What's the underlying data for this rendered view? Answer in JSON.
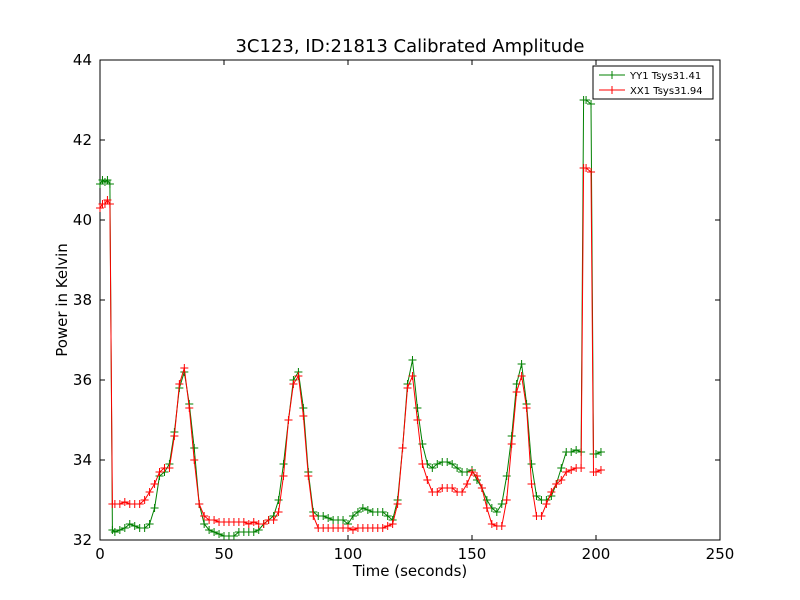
{
  "chart_data": {
    "type": "line",
    "title": "3C123, ID:21813 Calibrated Amplitude",
    "xlabel": "Time (seconds)",
    "ylabel": "Power in Kelvin",
    "xlim": [
      0,
      250
    ],
    "ylim": [
      32,
      44
    ],
    "xticks": [
      "0",
      "50",
      "100",
      "150",
      "200",
      "250"
    ],
    "yticks": [
      "32",
      "34",
      "36",
      "38",
      "40",
      "42",
      "44"
    ],
    "grid": false,
    "legend_position": "top-right",
    "series": [
      {
        "name": "YY1 Tsys31.41",
        "color": "#008000",
        "marker": "+",
        "x": [
          0,
          1,
          2,
          3,
          4,
          5,
          6,
          8,
          10,
          12,
          14,
          16,
          18,
          20,
          22,
          24,
          26,
          28,
          30,
          32,
          34,
          36,
          38,
          40,
          42,
          44,
          46,
          48,
          50,
          52,
          54,
          56,
          58,
          60,
          62,
          64,
          66,
          68,
          70,
          72,
          74,
          76,
          78,
          80,
          82,
          84,
          86,
          88,
          90,
          92,
          94,
          96,
          98,
          100,
          102,
          104,
          106,
          108,
          110,
          112,
          114,
          116,
          118,
          120,
          122,
          124,
          126,
          128,
          130,
          132,
          134,
          136,
          138,
          140,
          142,
          144,
          146,
          148,
          150,
          152,
          154,
          156,
          158,
          160,
          162,
          164,
          166,
          168,
          170,
          172,
          174,
          176,
          178,
          180,
          182,
          184,
          186,
          188,
          190,
          192,
          194,
          195,
          196,
          198,
          199,
          200,
          202
        ],
        "y": [
          40.9,
          41.0,
          40.95,
          41.0,
          40.9,
          32.25,
          32.2,
          32.25,
          32.3,
          32.4,
          32.35,
          32.3,
          32.3,
          32.4,
          32.8,
          33.6,
          33.7,
          33.9,
          34.7,
          35.8,
          36.2,
          35.4,
          34.3,
          32.9,
          32.4,
          32.25,
          32.2,
          32.15,
          32.1,
          32.1,
          32.1,
          32.2,
          32.2,
          32.2,
          32.2,
          32.25,
          32.4,
          32.5,
          32.6,
          33.0,
          33.9,
          35.0,
          36.0,
          36.2,
          35.3,
          33.7,
          32.7,
          32.6,
          32.6,
          32.55,
          32.5,
          32.5,
          32.5,
          32.4,
          32.6,
          32.7,
          32.8,
          32.75,
          32.7,
          32.7,
          32.7,
          32.6,
          32.5,
          33.0,
          34.3,
          35.9,
          36.5,
          35.3,
          34.4,
          33.9,
          33.8,
          33.9,
          33.95,
          33.95,
          33.9,
          33.8,
          33.7,
          33.7,
          33.75,
          33.5,
          33.3,
          33.0,
          32.8,
          32.7,
          32.9,
          33.6,
          34.6,
          35.9,
          36.4,
          35.4,
          33.9,
          33.1,
          33.0,
          33.0,
          33.1,
          33.4,
          33.8,
          34.2,
          34.2,
          34.25,
          34.2,
          43.0,
          43.0,
          42.9,
          34.15,
          34.15,
          34.2
        ]
      },
      {
        "name": "XX1 Tsys31.94",
        "color": "#ff0000",
        "marker": "+",
        "x": [
          0,
          1,
          2,
          3,
          4,
          5,
          6,
          8,
          10,
          12,
          14,
          16,
          18,
          20,
          22,
          24,
          26,
          28,
          30,
          32,
          34,
          36,
          38,
          40,
          42,
          44,
          46,
          48,
          50,
          52,
          54,
          56,
          58,
          60,
          62,
          64,
          66,
          68,
          70,
          72,
          74,
          76,
          78,
          80,
          82,
          84,
          86,
          88,
          90,
          92,
          94,
          96,
          98,
          100,
          102,
          104,
          106,
          108,
          110,
          112,
          114,
          116,
          118,
          120,
          122,
          124,
          126,
          128,
          130,
          132,
          134,
          136,
          138,
          140,
          142,
          144,
          146,
          148,
          150,
          152,
          154,
          156,
          158,
          160,
          162,
          164,
          166,
          168,
          170,
          172,
          174,
          176,
          178,
          180,
          182,
          184,
          186,
          188,
          190,
          192,
          194,
          195,
          196,
          198,
          199,
          200,
          202
        ],
        "y": [
          40.3,
          40.4,
          40.4,
          40.5,
          40.4,
          32.9,
          32.9,
          32.9,
          32.95,
          32.9,
          32.9,
          32.9,
          33.0,
          33.2,
          33.4,
          33.7,
          33.8,
          33.8,
          34.6,
          35.9,
          36.3,
          35.3,
          34.0,
          32.9,
          32.6,
          32.5,
          32.5,
          32.45,
          32.45,
          32.45,
          32.45,
          32.45,
          32.45,
          32.4,
          32.45,
          32.4,
          32.4,
          32.5,
          32.5,
          32.7,
          33.6,
          35.0,
          35.9,
          36.1,
          35.1,
          33.6,
          32.6,
          32.3,
          32.3,
          32.3,
          32.3,
          32.3,
          32.3,
          32.3,
          32.25,
          32.3,
          32.3,
          32.3,
          32.3,
          32.3,
          32.3,
          32.35,
          32.4,
          32.9,
          34.3,
          35.8,
          36.1,
          35.0,
          33.9,
          33.5,
          33.2,
          33.2,
          33.3,
          33.3,
          33.3,
          33.2,
          33.2,
          33.4,
          33.7,
          33.6,
          33.3,
          32.8,
          32.4,
          32.35,
          32.35,
          33.0,
          34.4,
          35.7,
          36.1,
          35.3,
          33.4,
          32.6,
          32.6,
          32.9,
          33.2,
          33.4,
          33.5,
          33.7,
          33.75,
          33.8,
          33.8,
          41.3,
          41.3,
          41.2,
          33.7,
          33.7,
          33.75
        ]
      }
    ]
  }
}
